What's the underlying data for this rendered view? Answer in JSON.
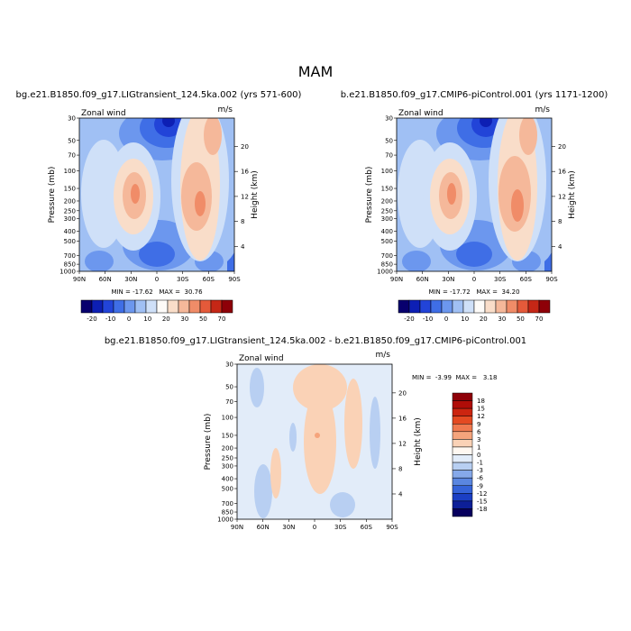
{
  "season": "MAM",
  "panels": [
    {
      "title": "bg.e21.B1850.f09_g17.LIGtransient_124.5ka.002 (yrs 571-600)",
      "field": "Zonal wind",
      "units": "m/s",
      "stats": "MIN = -17.62   MAX =  30.76"
    },
    {
      "title": "b.e21.B1850.f09_g17.CMIP6-piControl.001 (yrs 1171-1200)",
      "field": "Zonal wind",
      "units": "m/s",
      "stats": "MIN = -17.72   MAX =  34.20"
    },
    {
      "title": "bg.e21.B1850.f09_g17.LIGtransient_124.5ka.002 - b.e21.B1850.f09_g17.CMIP6-piControl.001",
      "field": "Zonal wind",
      "units": "m/s",
      "stats": "MIN =  -3.99  MAX =   3.18"
    }
  ],
  "chart_data": [
    {
      "type": "heatmap",
      "title": "bg.e21.B1850.f09_g17.LIGtransient_124.5ka.002 (yrs 571-600)",
      "xlabel": "",
      "ylabel": "Pressure (mb)",
      "ylabel_right": "Height (km)",
      "x_ticks": [
        "90N",
        "60N",
        "30N",
        "0",
        "30S",
        "60S",
        "90S"
      ],
      "y_ticks": [
        "30",
        "50",
        "70",
        "100",
        "150",
        "200",
        "250",
        "300",
        "400",
        "500",
        "700",
        "850",
        "1000"
      ],
      "y_ticks_right": [
        "4",
        "8",
        "12",
        "16",
        "20"
      ],
      "min": -17.62,
      "max": 30.76,
      "colorbar_labels": [
        "-20",
        "-10",
        "0",
        "10",
        "20",
        "30",
        "50",
        "70"
      ]
    },
    {
      "type": "heatmap",
      "title": "b.e21.B1850.f09_g17.CMIP6-piControl.001 (yrs 1171-1200)",
      "xlabel": "",
      "ylabel": "Pressure (mb)",
      "ylabel_right": "Height (km)",
      "x_ticks": [
        "90N",
        "60N",
        "30N",
        "0",
        "30S",
        "60S",
        "90S"
      ],
      "y_ticks": [
        "30",
        "50",
        "70",
        "100",
        "150",
        "200",
        "250",
        "300",
        "400",
        "500",
        "700",
        "850",
        "1000"
      ],
      "y_ticks_right": [
        "4",
        "8",
        "12",
        "16",
        "20"
      ],
      "min": -17.72,
      "max": 34.2,
      "colorbar_labels": [
        "-20",
        "-10",
        "0",
        "10",
        "20",
        "30",
        "50",
        "70"
      ]
    },
    {
      "type": "heatmap",
      "title": "bg.e21.B1850.f09_g17.LIGtransient_124.5ka.002 - b.e21.B1850.f09_g17.CMIP6-piControl.001",
      "xlabel": "",
      "ylabel": "Pressure (mb)",
      "ylabel_right": "Height (km)",
      "x_ticks": [
        "90N",
        "60N",
        "30N",
        "0",
        "30S",
        "60S",
        "90S"
      ],
      "y_ticks": [
        "30",
        "50",
        "70",
        "100",
        "150",
        "200",
        "250",
        "300",
        "400",
        "500",
        "700",
        "850",
        "1000"
      ],
      "y_ticks_right": [
        "4",
        "8",
        "12",
        "16",
        "20"
      ],
      "min": -3.99,
      "max": 3.18,
      "colorbar_labels": [
        "18",
        "15",
        "12",
        "9",
        "6",
        "3",
        "1",
        "0",
        "-1",
        "-3",
        "-6",
        "-9",
        "-12",
        "-15",
        "-18"
      ]
    }
  ],
  "colors": {
    "main_scale": [
      "#08006e",
      "#0d1fb4",
      "#2244d8",
      "#3f6ee6",
      "#6c97ee",
      "#a0c0f4",
      "#cfe0f8",
      "#fdfbf8",
      "#f9ddc9",
      "#f5b89a",
      "#f08c68",
      "#e45a3a",
      "#c52716",
      "#8e0008"
    ],
    "diff_scale": [
      "#8e0008",
      "#b00d08",
      "#cc2510",
      "#e44a22",
      "#f07a50",
      "#f5a47c",
      "#fad2b6",
      "#fff8f1",
      "#e2ecf9",
      "#b8cff2",
      "#86a9ea",
      "#5a86e0",
      "#3563d8",
      "#1b3fc4",
      "#0d1f98",
      "#07005e"
    ]
  }
}
